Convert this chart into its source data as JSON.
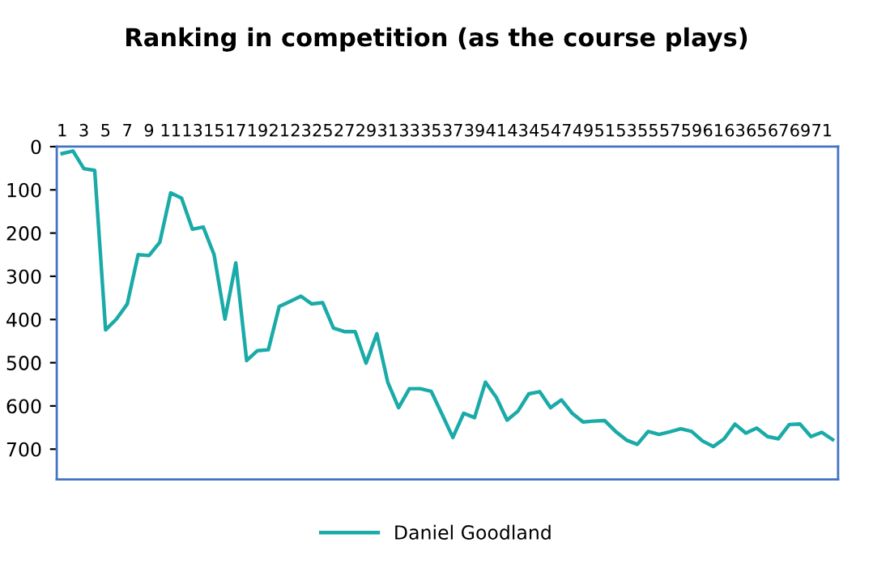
{
  "chart_data": {
    "type": "line",
    "title": "Ranking in competition (as the course plays)",
    "categories": [
      "1",
      null,
      "3",
      null,
      "5",
      null,
      "7",
      null,
      "9",
      null,
      "11",
      null,
      "13",
      null,
      "15",
      null,
      "17",
      null,
      "19",
      null,
      "21",
      null,
      "23",
      null,
      "25",
      null,
      "27",
      null,
      "29",
      null,
      "31",
      null,
      "33",
      null,
      "35",
      null,
      "37",
      null,
      "39",
      null,
      "41",
      null,
      "43",
      null,
      "45",
      null,
      "47",
      null,
      "49",
      null,
      "51",
      null,
      "53",
      null,
      "55",
      null,
      "57",
      null,
      "59",
      null,
      "61",
      null,
      "63",
      null,
      "65",
      null,
      "67",
      null,
      "69",
      null,
      "71",
      null
    ],
    "series": [
      {
        "name": "Daniel Goodland",
        "color": "#1aaba8",
        "values": [
          16,
          10,
          51,
          55,
          424,
          399,
          364,
          250,
          252,
          221,
          107,
          119,
          191,
          186,
          250,
          399,
          269,
          495,
          472,
          470,
          370,
          358,
          346,
          364,
          361,
          420,
          428,
          428,
          501,
          433,
          545,
          604,
          560,
          560,
          566,
          619,
          673,
          617,
          627,
          545,
          580,
          633,
          612,
          572,
          567,
          604,
          586,
          617,
          637,
          635,
          634,
          659,
          679,
          689,
          659,
          666,
          660,
          653,
          659,
          681,
          694,
          676,
          642,
          663,
          651,
          671,
          676,
          643,
          642,
          671,
          661,
          678
        ]
      }
    ],
    "ylim": [
      770,
      0
    ],
    "yticks": [
      0,
      100,
      200,
      300,
      400,
      500,
      600,
      700
    ],
    "grid": false,
    "legend": "bottom",
    "marker": "none",
    "line_style": "solid"
  }
}
